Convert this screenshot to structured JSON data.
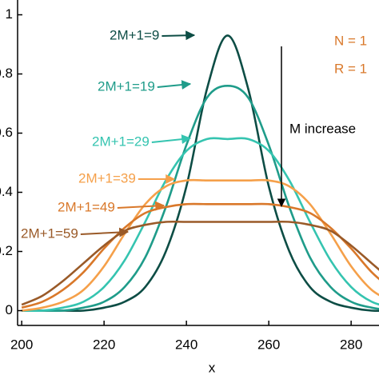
{
  "chart_data": {
    "type": "line",
    "x_label": "x",
    "x": [
      200,
      205,
      210,
      215,
      220,
      225,
      230,
      235,
      240,
      245,
      250,
      255,
      260,
      265,
      270,
      275,
      280,
      285,
      290
    ],
    "series": [
      {
        "name": "2M+1=9",
        "color": "#0d4d45",
        "values": [
          0,
          0,
          0,
          0,
          0.01,
          0.03,
          0.08,
          0.2,
          0.42,
          0.75,
          0.93,
          0.75,
          0.42,
          0.2,
          0.08,
          0.03,
          0.01,
          0,
          0
        ]
      },
      {
        "name": "2M+1=19",
        "color": "#1f9c8a",
        "values": [
          0,
          0,
          0,
          0.01,
          0.03,
          0.08,
          0.18,
          0.35,
          0.56,
          0.72,
          0.76,
          0.72,
          0.56,
          0.35,
          0.18,
          0.08,
          0.03,
          0.01,
          0
        ]
      },
      {
        "name": "2M+1=29",
        "color": "#35c4b0",
        "values": [
          0,
          0,
          0.01,
          0.03,
          0.08,
          0.17,
          0.3,
          0.44,
          0.54,
          0.58,
          0.58,
          0.58,
          0.54,
          0.44,
          0.3,
          0.17,
          0.08,
          0.03,
          0.01
        ]
      },
      {
        "name": "2M+1=39",
        "color": "#f5a04a",
        "values": [
          0,
          0.01,
          0.03,
          0.07,
          0.15,
          0.26,
          0.36,
          0.42,
          0.44,
          0.44,
          0.44,
          0.44,
          0.44,
          0.42,
          0.36,
          0.26,
          0.15,
          0.07,
          0.03
        ]
      },
      {
        "name": "2M+1=49",
        "color": "#d9782a",
        "values": [
          0.01,
          0.03,
          0.07,
          0.13,
          0.21,
          0.28,
          0.33,
          0.35,
          0.36,
          0.36,
          0.36,
          0.36,
          0.36,
          0.35,
          0.33,
          0.28,
          0.21,
          0.13,
          0.07
        ]
      },
      {
        "name": "2M+1=59",
        "color": "#9a5a28",
        "values": [
          0.02,
          0.05,
          0.1,
          0.16,
          0.22,
          0.27,
          0.29,
          0.3,
          0.3,
          0.3,
          0.3,
          0.3,
          0.3,
          0.3,
          0.29,
          0.27,
          0.22,
          0.16,
          0.1
        ]
      }
    ],
    "annotations": [
      "M increase",
      "N = 1",
      "R = 1"
    ],
    "xlim": [
      199,
      290
    ],
    "xticks": [
      200,
      220,
      240,
      260,
      280
    ],
    "ylim": [
      -0.05,
      1.05
    ],
    "yticks": [
      0,
      0.2,
      0.4,
      0.6,
      0.8,
      1.0
    ]
  }
}
